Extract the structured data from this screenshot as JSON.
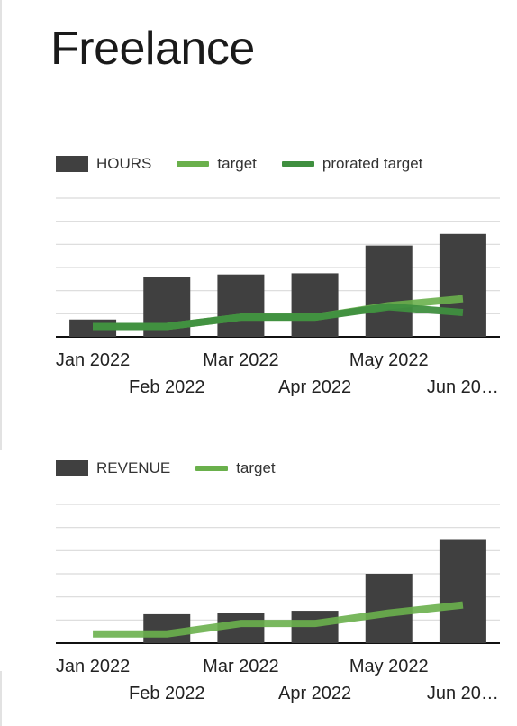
{
  "page": {
    "title": "Freelance"
  },
  "colors": {
    "bar": "#404040",
    "target": "#6ab04c",
    "prorated_target": "#3f8f3f",
    "grid": "#d9d9d9",
    "baseline": "#111111"
  },
  "chart_data": [
    {
      "type": "bar",
      "title": "",
      "categories": [
        "Jan 2022",
        "Feb 2022",
        "Mar 2022",
        "Apr 2022",
        "May 2022",
        "Jun 20…"
      ],
      "series": [
        {
          "name": "HOURS",
          "kind": "bar",
          "values": [
            0.75,
            2.6,
            2.7,
            2.75,
            3.95,
            4.45
          ]
        },
        {
          "name": "target",
          "kind": "line",
          "values": [
            0.45,
            0.45,
            0.85,
            0.85,
            1.35,
            1.65
          ]
        },
        {
          "name": "prorated target",
          "kind": "line",
          "values": [
            0.45,
            0.45,
            0.85,
            0.85,
            1.3,
            1.05
          ]
        }
      ],
      "ylim": [
        0,
        6
      ],
      "grid": true,
      "legend": "top-left"
    },
    {
      "type": "bar",
      "title": "",
      "categories": [
        "Jan 2022",
        "Feb 2022",
        "Mar 2022",
        "Apr 2022",
        "May 2022",
        "Jun 20…"
      ],
      "series": [
        {
          "name": "REVENUE",
          "kind": "bar",
          "values": [
            0,
            1.25,
            1.3,
            1.4,
            3.0,
            4.5
          ]
        },
        {
          "name": "target",
          "kind": "line",
          "values": [
            0.4,
            0.4,
            0.85,
            0.85,
            1.3,
            1.65
          ]
        }
      ],
      "ylim": [
        0,
        6
      ],
      "grid": true,
      "legend": "top-left"
    }
  ]
}
